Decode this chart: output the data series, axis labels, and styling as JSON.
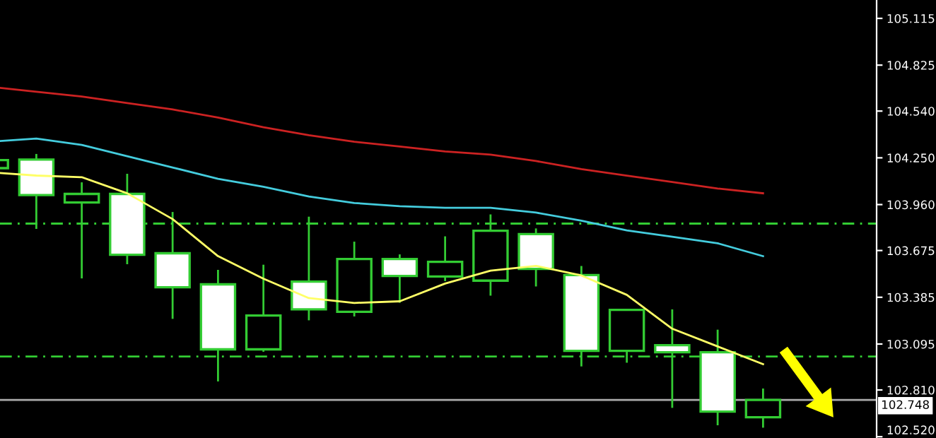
{
  "chart_data": {
    "type": "candlestick",
    "categories": [
      null,
      null,
      null,
      null,
      null,
      null,
      null,
      null,
      null,
      null,
      null,
      null,
      null,
      null,
      null,
      null,
      null,
      null
    ],
    "color": "#33cc33",
    "ohlc": [
      [
        104.186,
        104.236,
        104.186,
        104.236
      ],
      [
        104.239,
        104.274,
        103.809,
        104.019
      ],
      [
        103.973,
        104.098,
        103.502,
        104.026
      ],
      [
        104.026,
        104.151,
        103.59,
        103.649
      ],
      [
        103.658,
        103.914,
        103.251,
        103.447
      ],
      [
        103.465,
        103.555,
        102.863,
        103.062
      ],
      [
        103.062,
        103.587,
        103.047,
        103.272
      ],
      [
        103.482,
        103.885,
        103.242,
        103.31
      ],
      [
        103.295,
        103.73,
        103.266,
        103.622
      ],
      [
        103.622,
        103.651,
        103.351,
        103.517
      ],
      [
        103.514,
        103.763,
        103.485,
        103.605
      ],
      [
        103.488,
        103.899,
        103.395,
        103.798
      ],
      [
        103.777,
        103.812,
        103.452,
        103.561
      ],
      [
        103.523,
        103.579,
        102.956,
        103.053
      ],
      [
        103.053,
        103.307,
        102.979,
        103.307
      ],
      [
        103.088,
        103.31,
        102.699,
        103.044
      ],
      [
        103.044,
        103.184,
        102.591,
        102.676
      ],
      [
        102.641,
        102.819,
        102.576,
        102.748
      ]
    ],
    "series": [
      {
        "type": "line",
        "color": "#ffff66",
        "values": [
          104.16,
          104.14,
          104.13,
          104.03,
          103.87,
          103.64,
          103.5,
          103.38,
          103.35,
          103.36,
          103.47,
          103.55,
          103.58,
          103.52,
          103.4,
          103.19,
          103.08,
          102.97
        ]
      },
      {
        "type": "line",
        "color": "#44ccdd",
        "values": [
          104.35,
          104.37,
          104.33,
          104.26,
          104.19,
          104.12,
          104.07,
          104.01,
          103.97,
          103.95,
          103.94,
          103.94,
          103.91,
          103.86,
          103.8,
          103.76,
          103.72,
          103.64
        ]
      },
      {
        "type": "line",
        "color": "#cc2222",
        "values": [
          104.69,
          104.66,
          104.63,
          104.59,
          104.55,
          104.5,
          104.44,
          104.39,
          104.35,
          104.32,
          104.29,
          104.27,
          104.23,
          104.18,
          104.14,
          104.1,
          104.06,
          104.03
        ]
      }
    ],
    "ylim": [
      102.512,
      105.229
    ],
    "yticks": [
      105.115,
      104.825,
      {
        "value": 104.54,
        "label": "104.540"
      },
      {
        "value": 104.25,
        "label": "104.250"
      },
      {
        "value": 103.96,
        "label": "103.960"
      },
      103.675,
      103.385,
      103.095,
      {
        "value": 102.81,
        "label": "102.810"
      },
      {
        "value": 102.52,
        "label": "102.520"
      }
    ],
    "ref_lines": [
      {
        "axis": "y",
        "value": 103.842,
        "color": "#33cc33",
        "line_style": "dashdot"
      },
      {
        "axis": "y",
        "value": 103.018,
        "color": "#33cc33",
        "line_style": "dashdot"
      },
      {
        "axis": "y",
        "value": 102.748,
        "label": "102.748",
        "color": "#aaaaaa",
        "line_style": "solid"
      }
    ],
    "grid": false,
    "legend": false
  }
}
